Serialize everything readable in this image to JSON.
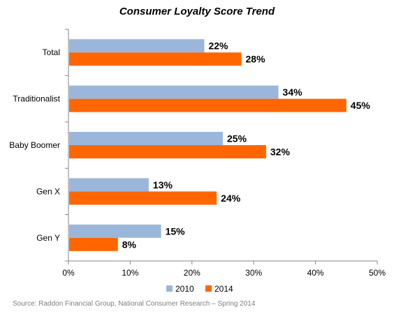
{
  "chart_data": {
    "type": "bar",
    "orientation": "horizontal",
    "title": "Consumer Loyalty Score Trend",
    "categories": [
      "Total",
      "Traditionalist",
      "Baby Boomer",
      "Gen X",
      "Gen Y"
    ],
    "series": [
      {
        "name": "2010",
        "values": [
          22,
          34,
          25,
          13,
          15
        ],
        "labels": [
          "22%",
          "34%",
          "25%",
          "13%",
          "15%"
        ],
        "color": "#9bb6db"
      },
      {
        "name": "2014",
        "values": [
          28,
          45,
          32,
          24,
          8
        ],
        "labels": [
          "28%",
          "45%",
          "32%",
          "24%",
          "8%"
        ],
        "color": "#ff6600"
      }
    ],
    "xlim": [
      0,
      50
    ],
    "xticks": [
      "0%",
      "10%",
      "20%",
      "30%",
      "40%",
      "50%"
    ],
    "grid": false,
    "legend": "bottom",
    "source": "Source: Raddon Financial Group,  National Consumer Research –  Spring 2014"
  }
}
